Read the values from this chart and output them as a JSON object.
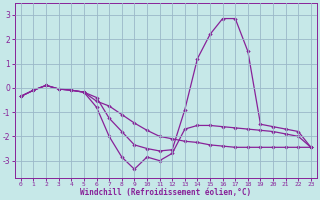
{
  "xlabel": "Windchill (Refroidissement éolien,°C)",
  "background_color": "#c6e8e8",
  "grid_color": "#9ab8c8",
  "line_color": "#882299",
  "x_values": [
    0,
    1,
    2,
    3,
    4,
    5,
    6,
    7,
    8,
    9,
    10,
    11,
    12,
    13,
    14,
    15,
    16,
    17,
    18,
    19,
    20,
    21,
    22,
    23
  ],
  "line1_y": [
    -0.35,
    -0.1,
    0.1,
    -0.05,
    -0.1,
    -0.18,
    -0.4,
    -1.25,
    -1.8,
    -2.35,
    -2.5,
    -2.6,
    -2.55,
    -0.9,
    1.2,
    2.2,
    2.85,
    2.85,
    1.5,
    -1.5,
    -1.6,
    -1.7,
    -1.8,
    -2.45
  ],
  "line2_y": [
    -0.35,
    -0.1,
    0.1,
    -0.05,
    -0.1,
    -0.18,
    -0.8,
    -2.0,
    -2.85,
    -3.35,
    -2.85,
    -3.0,
    -2.7,
    -1.7,
    -1.55,
    -1.55,
    -1.6,
    -1.65,
    -1.7,
    -1.75,
    -1.8,
    -1.9,
    -2.0,
    -2.45
  ],
  "line3_y": [
    -0.35,
    -0.1,
    0.1,
    -0.05,
    -0.1,
    -0.18,
    -0.55,
    -0.75,
    -1.1,
    -1.45,
    -1.75,
    -2.0,
    -2.1,
    -2.2,
    -2.25,
    -2.35,
    -2.4,
    -2.45,
    -2.45,
    -2.45,
    -2.45,
    -2.45,
    -2.45,
    -2.45
  ],
  "ylim": [
    -3.7,
    3.5
  ],
  "xlim": [
    -0.5,
    23.5
  ],
  "yticks": [
    -3,
    -2,
    -1,
    0,
    1,
    2,
    3
  ],
  "xticks": [
    0,
    1,
    2,
    3,
    4,
    5,
    6,
    7,
    8,
    9,
    10,
    11,
    12,
    13,
    14,
    15,
    16,
    17,
    18,
    19,
    20,
    21,
    22,
    23
  ]
}
